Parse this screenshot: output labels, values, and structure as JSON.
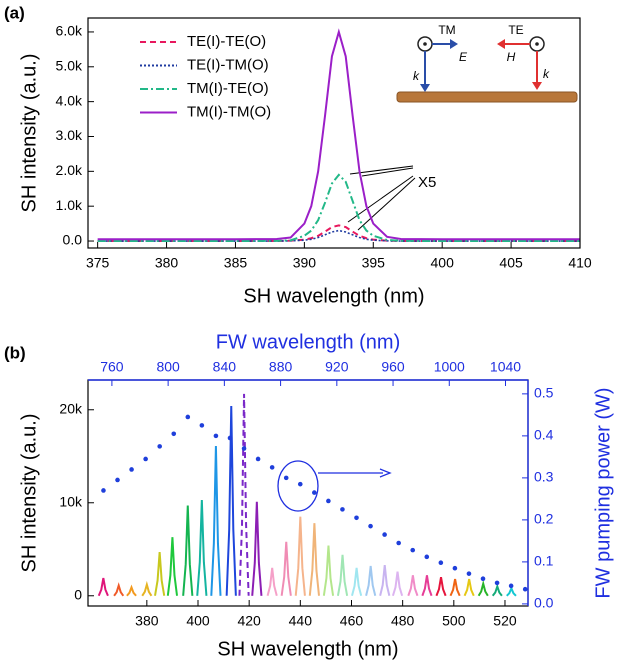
{
  "chart_data": [
    {
      "type": "line",
      "panel": "(a)",
      "xlabel": "SH wavelength (nm)",
      "ylabel": "SH intensity (a.u.)",
      "legend": "upper left",
      "annotation": "X5",
      "inset_labels": [
        "TM",
        "E",
        "k",
        "TE",
        "H",
        "k"
      ],
      "xlim": [
        374.3,
        410
      ],
      "xticks": [
        375,
        380,
        385,
        390,
        395,
        400,
        405,
        410
      ],
      "ylim": [
        -200,
        6400
      ],
      "yticks": [
        {
          "value": 0,
          "label": "0.0"
        },
        {
          "value": 1000,
          "label": "1.0k"
        },
        {
          "value": 2000,
          "label": "2.0k"
        },
        {
          "value": 3000,
          "label": "3.0k"
        },
        {
          "value": 4000,
          "label": "4.0k"
        },
        {
          "value": 5000,
          "label": "5.0k"
        },
        {
          "value": 6000,
          "label": "6.0k"
        }
      ],
      "x": [
        375,
        380,
        385,
        388,
        389,
        390,
        390.5,
        391,
        391.5,
        392,
        392.5,
        393,
        393.5,
        394,
        394.5,
        395,
        396,
        397,
        400,
        405,
        410
      ],
      "series": [
        {
          "name": "TE(I)-TE(O)",
          "color": "#e8175d",
          "style": "dashed",
          "values": [
            0,
            0,
            0,
            0,
            10,
            40,
            80,
            150,
            270,
            400,
            450,
            400,
            270,
            150,
            80,
            40,
            10,
            0,
            0,
            0,
            0
          ]
        },
        {
          "name": "TE(I)-TM(O)",
          "color": "#1f3ba0",
          "style": "dotted",
          "values": [
            0,
            0,
            0,
            0,
            5,
            25,
            50,
            100,
            180,
            260,
            300,
            260,
            180,
            100,
            50,
            25,
            5,
            0,
            0,
            0,
            0
          ]
        },
        {
          "name": "TM(I)-TE(O)",
          "color": "#22b888",
          "style": "dashdot",
          "values": [
            0,
            0,
            0,
            5,
            20,
            150,
            300,
            600,
            1100,
            1650,
            1900,
            1700,
            1150,
            600,
            300,
            150,
            30,
            5,
            0,
            0,
            0
          ]
        },
        {
          "name": "TM(I)-TM(O)",
          "color": "#9b1fc8",
          "style": "solid",
          "values": [
            50,
            50,
            50,
            60,
            100,
            500,
            1000,
            2000,
            3600,
            5300,
            6000,
            5300,
            3600,
            2000,
            1000,
            500,
            120,
            60,
            50,
            50,
            50
          ]
        }
      ]
    },
    {
      "type": "line",
      "panel": "(b)",
      "xlabel": "SH wavelength (nm)",
      "ylabel": "SH intensity (a.u.)",
      "x2label": "FW wavelength (nm)",
      "y2label": "FW pumping power (W)",
      "axis2_color": "#1f2fe0",
      "xlim": [
        357,
        529
      ],
      "xticks": [
        380,
        400,
        420,
        440,
        460,
        480,
        500,
        520
      ],
      "x2lim": [
        743,
        1056
      ],
      "x2ticks": [
        760,
        800,
        840,
        880,
        920,
        960,
        1000,
        1040
      ],
      "ylim": [
        -1100,
        23200
      ],
      "yticks": [
        0,
        {
          "value": 10000,
          "label": "10k"
        },
        {
          "value": 20000,
          "label": "20k"
        }
      ],
      "y2lim": [
        -0.005,
        0.533
      ],
      "y2ticks": [
        {
          "value": 0,
          "label": "0.0"
        },
        0.1,
        0.2,
        0.3,
        0.4,
        0.5
      ],
      "series": [
        {
          "color": "#e0157a",
          "x": [
            361.2,
            362.2,
            363,
            363.8,
            364.8
          ],
          "values": [
            0,
            665,
            1900,
            665,
            0
          ]
        },
        {
          "color": "#f05a28",
          "x": [
            367.2,
            368.2,
            369,
            369.8,
            370.8
          ],
          "values": [
            0,
            385,
            1100,
            385,
            0
          ]
        },
        {
          "color": "#f39a1e",
          "x": [
            372.2,
            373.2,
            374,
            374.8,
            375.8
          ],
          "values": [
            0,
            315,
            900,
            315,
            0
          ]
        },
        {
          "color": "#e6b422",
          "x": [
            378.2,
            379.2,
            380,
            380.8,
            381.8
          ],
          "values": [
            0,
            420,
            1200,
            420,
            0
          ]
        },
        {
          "color": "#c8c81e",
          "x": [
            383.2,
            384.2,
            385,
            385.8,
            386.8
          ],
          "values": [
            0,
            1645,
            4700,
            1645,
            0
          ]
        },
        {
          "color": "#1ec83c",
          "x": [
            388.2,
            389.2,
            390,
            390.8,
            391.8
          ],
          "values": [
            0,
            2205,
            6300,
            2205,
            0
          ]
        },
        {
          "color": "#14b450",
          "x": [
            394.2,
            395.2,
            396,
            396.8,
            397.8
          ],
          "values": [
            0,
            3395,
            9700,
            3395,
            0
          ]
        },
        {
          "color": "#14b4a0",
          "x": [
            399.7,
            400.7,
            401.5,
            402.3,
            403.3
          ],
          "values": [
            0,
            3605,
            10300,
            3605,
            0
          ]
        },
        {
          "color": "#1e96e6",
          "x": [
            405.2,
            406.2,
            407,
            407.8,
            408.8
          ],
          "values": [
            0,
            5635,
            16100,
            5635,
            0
          ]
        },
        {
          "color": "#1e46dc",
          "x": [
            411.2,
            412.2,
            413,
            413.8,
            414.8
          ],
          "values": [
            0,
            7140,
            20400,
            7140,
            0
          ]
        },
        {
          "color": "#7a28c8",
          "style": "dashed",
          "x": [
            416.2,
            417.2,
            418,
            418.8,
            419.8
          ],
          "values": [
            0,
            7595,
            21700,
            7595,
            0
          ]
        },
        {
          "color": "#8c1eb4",
          "x": [
            421.2,
            422.2,
            423,
            423.8,
            424.8
          ],
          "values": [
            0,
            3535,
            10100,
            3535,
            0
          ]
        },
        {
          "color": "#f5a0c8",
          "x": [
            427.2,
            428.2,
            429,
            429.8,
            430.8
          ],
          "values": [
            0,
            1050,
            3000,
            1050,
            0
          ]
        },
        {
          "color": "#f08cb4",
          "x": [
            432.7,
            433.7,
            434.5,
            435.3,
            436.3
          ],
          "values": [
            0,
            2030,
            5800,
            2030,
            0
          ]
        },
        {
          "color": "#f5b48c",
          "x": [
            438.2,
            439.2,
            440,
            440.8,
            441.8
          ],
          "values": [
            0,
            2975,
            8500,
            2975,
            0
          ]
        },
        {
          "color": "#f0b478",
          "x": [
            443.7,
            444.7,
            445.5,
            446.3,
            447.3
          ],
          "values": [
            0,
            2730,
            7800,
            2730,
            0
          ]
        },
        {
          "color": "#b4e68c",
          "x": [
            449.2,
            450.2,
            451,
            451.8,
            452.8
          ],
          "values": [
            0,
            1890,
            5400,
            1890,
            0
          ]
        },
        {
          "color": "#a0e6b4",
          "x": [
            454.7,
            455.7,
            456.5,
            457.3,
            458.3
          ],
          "values": [
            0,
            1540,
            4400,
            1540,
            0
          ]
        },
        {
          "color": "#a0e6f0",
          "x": [
            460.2,
            461.2,
            462,
            462.8,
            463.8
          ],
          "values": [
            0,
            1050,
            3000,
            1050,
            0
          ]
        },
        {
          "color": "#a0c8f0",
          "x": [
            465.7,
            466.7,
            467.5,
            468.3,
            469.3
          ],
          "values": [
            0,
            1120,
            3200,
            1120,
            0
          ]
        },
        {
          "color": "#c8b4f0",
          "x": [
            471.2,
            472.2,
            473,
            473.8,
            474.8
          ],
          "values": [
            0,
            1155,
            3300,
            1155,
            0
          ]
        },
        {
          "color": "#dcb4f0",
          "x": [
            476.2,
            477.2,
            478,
            478.8,
            479.8
          ],
          "values": [
            0,
            910,
            2600,
            910,
            0
          ]
        },
        {
          "color": "#f08cc8",
          "x": [
            482.2,
            483.2,
            484,
            484.8,
            485.8
          ],
          "values": [
            0,
            770,
            2200,
            770,
            0
          ]
        },
        {
          "color": "#e63c96",
          "x": [
            487.7,
            488.7,
            489.5,
            490.3,
            491.3
          ],
          "values": [
            0,
            770,
            2200,
            770,
            0
          ]
        },
        {
          "color": "#e6143c",
          "x": [
            493.2,
            494.2,
            495,
            495.8,
            496.8
          ],
          "values": [
            0,
            700,
            2000,
            700,
            0
          ]
        },
        {
          "color": "#f06414",
          "x": [
            498.7,
            499.7,
            500.5,
            501.3,
            502.3
          ],
          "values": [
            0,
            630,
            1800,
            630,
            0
          ]
        },
        {
          "color": "#e6c814",
          "x": [
            504.2,
            505.2,
            506,
            506.8,
            507.8
          ],
          "values": [
            0,
            630,
            1800,
            630,
            0
          ]
        },
        {
          "color": "#28b428",
          "x": [
            509.7,
            510.7,
            511.5,
            512.3,
            513.3
          ],
          "values": [
            0,
            455,
            1300,
            455,
            0
          ]
        },
        {
          "color": "#14aa78",
          "x": [
            515.2,
            516.2,
            517,
            517.8,
            518.8
          ],
          "values": [
            0,
            350,
            1000,
            350,
            0
          ]
        },
        {
          "color": "#14c8d2",
          "x": [
            520.7,
            521.7,
            522.5,
            523.3,
            524.3
          ],
          "values": [
            0,
            280,
            800,
            280,
            0
          ]
        },
        {
          "color": "#1f3fdb",
          "style": "dots",
          "axis": "y2",
          "xaxis": "x2",
          "x": [
            754,
            764,
            774,
            784,
            794,
            804,
            814,
            824,
            834,
            844,
            854,
            864,
            874,
            884,
            894,
            904,
            914,
            924,
            934,
            944,
            954,
            964,
            974,
            984,
            994,
            1004,
            1014,
            1024,
            1034,
            1044,
            1054
          ],
          "values": [
            0.27,
            0.295,
            0.32,
            0.345,
            0.375,
            0.405,
            0.445,
            0.425,
            0.4,
            0.395,
            0.37,
            0.345,
            0.325,
            0.3,
            0.285,
            0.265,
            0.245,
            0.225,
            0.205,
            0.185,
            0.165,
            0.145,
            0.128,
            0.112,
            0.098,
            0.085,
            0.072,
            0.06,
            0.05,
            0.043,
            0.035
          ]
        }
      ]
    }
  ]
}
